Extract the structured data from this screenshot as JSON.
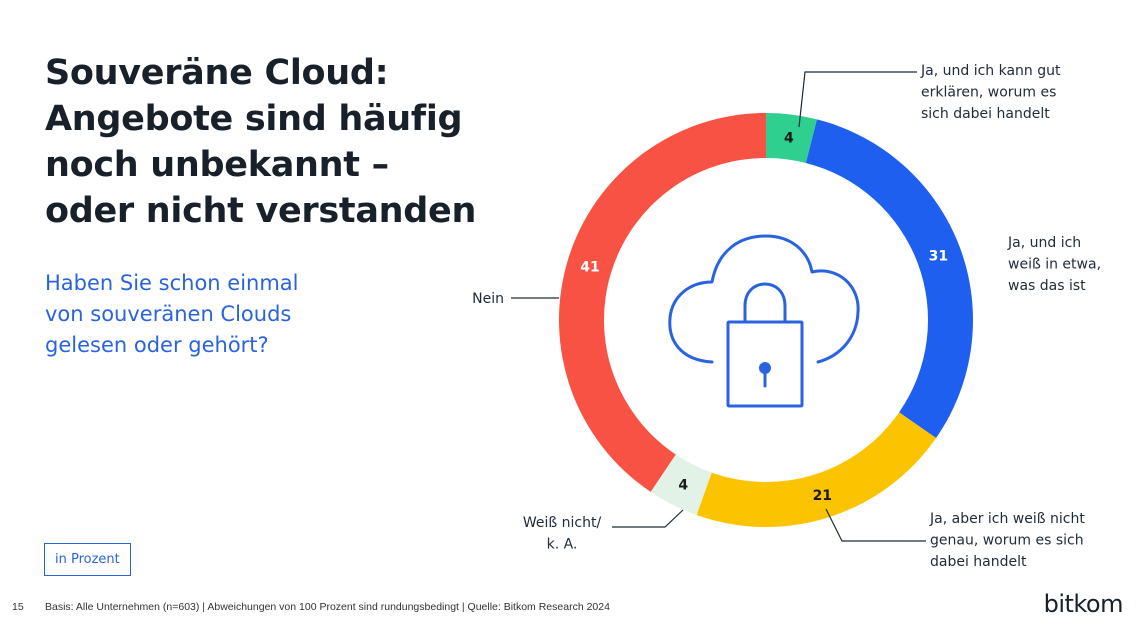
{
  "slide": {
    "title_lines": [
      "Souveräne Cloud:",
      "Angebote sind häufig",
      "noch unbekannt –",
      "oder nicht verstanden"
    ],
    "question_lines": [
      "Haben Sie schon einmal",
      "von souveränen Clouds",
      "gelesen oder gehört?"
    ],
    "unit": "in Prozent",
    "page_number": "15",
    "basis": "Basis: Alle Unternehmen (n=603) | Abweichungen von 100 Prozent sind rundungsbedingt | Quelle: Bitkom Research 2024",
    "brand": "bitkom"
  },
  "icons": {
    "center": "cloud-lock-icon"
  },
  "chart_data": {
    "type": "pie",
    "donut": true,
    "slices": [
      {
        "label_lines": [
          "Ja, und ich kann gut",
          "erklären, worum es",
          "sich dabei handelt"
        ],
        "value": 4,
        "color": "#2fcf8f"
      },
      {
        "label_lines": [
          "Ja, und ich",
          "weiß in etwa,",
          "was das ist"
        ],
        "value": 31,
        "color": "#1f5ff0"
      },
      {
        "label_lines": [
          "Ja, aber ich weiß nicht",
          "genau, worum es sich",
          "dabei handelt"
        ],
        "value": 21,
        "color": "#fcc400"
      },
      {
        "label_lines": [
          "Weiß nicht/",
          "k. A."
        ],
        "value": 4,
        "color": "#e2f2e6"
      },
      {
        "label_lines": [
          "Nein"
        ],
        "value": 41,
        "color": "#f85244"
      }
    ],
    "value_label_colors": [
      "#1a1a1a",
      "#ffffff",
      "#1a1a1a",
      "#1a1a1a",
      "#ffffff"
    ]
  }
}
